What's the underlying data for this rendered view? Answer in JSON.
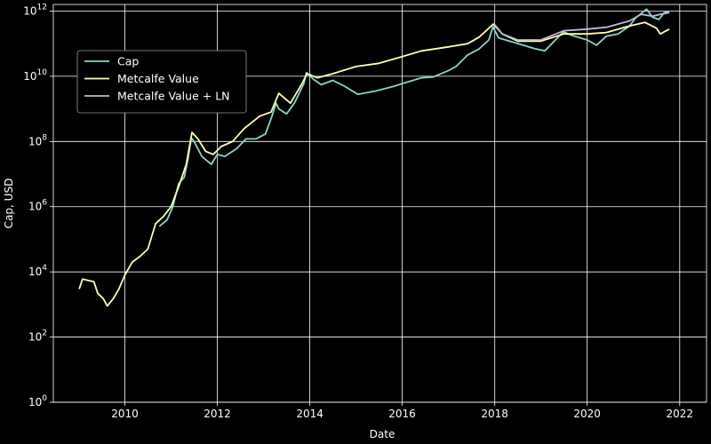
{
  "chart_data": {
    "type": "line",
    "title": "",
    "xlabel": "Date",
    "ylabel": "Cap, USD",
    "x_scale": "date",
    "y_scale": "log",
    "xlim": [
      "2008-06-15",
      "2022-08-01"
    ],
    "ylim": [
      1,
      1600000000000.0
    ],
    "x_ticks": [
      "2010",
      "2012",
      "2014",
      "2016",
      "2018",
      "2020",
      "2022"
    ],
    "x_tick_values": [
      "2010-01-01",
      "2012-01-01",
      "2014-01-01",
      "2016-01-01",
      "2018-01-01",
      "2020-01-01",
      "2022-01-01"
    ],
    "y_ticks": [
      {
        "value": 1,
        "base": "10",
        "exp": "0"
      },
      {
        "value": 100,
        "base": "10",
        "exp": "2"
      },
      {
        "value": 10000,
        "base": "10",
        "exp": "4"
      },
      {
        "value": 1000000,
        "base": "10",
        "exp": "6"
      },
      {
        "value": 100000000,
        "base": "10",
        "exp": "8"
      },
      {
        "value": 10000000000,
        "base": "10",
        "exp": "10"
      },
      {
        "value": 1000000000000,
        "base": "10",
        "exp": "12"
      }
    ],
    "grid": true,
    "legend_position": "upper-left",
    "background": "#000000",
    "grid_color": "#ffffff",
    "series": [
      {
        "name": "Cap",
        "color": "#8dd3c7",
        "points": [
          [
            "2010-10-01",
            250000.0
          ],
          [
            "2010-12-01",
            400000.0
          ],
          [
            "2011-01-15",
            1000000.0
          ],
          [
            "2011-03-01",
            5000000.0
          ],
          [
            "2011-04-15",
            8000000.0
          ],
          [
            "2011-05-15",
            30000000.0
          ],
          [
            "2011-06-10",
            130000000.0
          ],
          [
            "2011-07-01",
            100000000.0
          ],
          [
            "2011-08-01",
            60000000.0
          ],
          [
            "2011-09-01",
            35000000.0
          ],
          [
            "2011-10-15",
            25000000.0
          ],
          [
            "2011-11-15",
            20000000.0
          ],
          [
            "2012-01-01",
            40000000.0
          ],
          [
            "2012-03-01",
            35000000.0
          ],
          [
            "2012-06-01",
            60000000.0
          ],
          [
            "2012-08-15",
            120000000.0
          ],
          [
            "2012-11-01",
            120000000.0
          ],
          [
            "2013-01-15",
            170000000.0
          ],
          [
            "2013-03-01",
            500000000.0
          ],
          [
            "2013-04-10",
            1500000000.0
          ],
          [
            "2013-05-01",
            1000000000.0
          ],
          [
            "2013-07-01",
            700000000.0
          ],
          [
            "2013-09-01",
            1500000000.0
          ],
          [
            "2013-11-15",
            6000000000.0
          ],
          [
            "2013-12-05",
            13000000000.0
          ],
          [
            "2014-02-01",
            8000000000.0
          ],
          [
            "2014-04-01",
            5500000000.0
          ],
          [
            "2014-07-01",
            7500000000.0
          ],
          [
            "2014-10-01",
            5000000000.0
          ],
          [
            "2015-01-15",
            2800000000.0
          ],
          [
            "2015-06-01",
            3500000000.0
          ],
          [
            "2015-11-01",
            5000000000.0
          ],
          [
            "2016-01-01",
            6000000000.0
          ],
          [
            "2016-06-01",
            9000000000.0
          ],
          [
            "2016-09-01",
            9500000000.0
          ],
          [
            "2017-01-01",
            15000000000.0
          ],
          [
            "2017-03-01",
            20000000000.0
          ],
          [
            "2017-06-01",
            45000000000.0
          ],
          [
            "2017-09-01",
            70000000000.0
          ],
          [
            "2017-11-15",
            130000000000.0
          ],
          [
            "2017-12-17",
            330000000000.0
          ],
          [
            "2018-02-01",
            150000000000.0
          ],
          [
            "2018-06-01",
            110000000000.0
          ],
          [
            "2018-11-15",
            70000000000.0
          ],
          [
            "2019-02-01",
            60000000000.0
          ],
          [
            "2019-06-26",
            230000000000.0
          ],
          [
            "2019-09-01",
            180000000000.0
          ],
          [
            "2020-01-01",
            130000000000.0
          ],
          [
            "2020-03-15",
            90000000000.0
          ],
          [
            "2020-06-01",
            170000000000.0
          ],
          [
            "2020-09-01",
            200000000000.0
          ],
          [
            "2020-12-01",
            350000000000.0
          ],
          [
            "2021-01-15",
            600000000000.0
          ],
          [
            "2021-04-14",
            1150000000000.0
          ],
          [
            "2021-06-01",
            650000000000.0
          ],
          [
            "2021-07-20",
            550000000000.0
          ],
          [
            "2021-09-01",
            900000000000.0
          ],
          [
            "2021-10-10",
            1000000000000.0
          ]
        ]
      },
      {
        "name": "Metcalfe Value",
        "color": "#ffffb3",
        "points": [
          [
            "2009-01-05",
            3000.0
          ],
          [
            "2009-02-01",
            6000.0
          ],
          [
            "2009-03-15",
            5500.0
          ],
          [
            "2009-05-01",
            5000.0
          ],
          [
            "2009-06-01",
            2200.0
          ],
          [
            "2009-07-15",
            1500.0
          ],
          [
            "2009-08-15",
            900.0
          ],
          [
            "2009-10-01",
            1500.0
          ],
          [
            "2009-11-15",
            3000.0
          ],
          [
            "2010-01-01",
            8000.0
          ],
          [
            "2010-03-01",
            20000.0
          ],
          [
            "2010-05-01",
            30000.0
          ],
          [
            "2010-07-01",
            50000.0
          ],
          [
            "2010-09-01",
            300000.0
          ],
          [
            "2010-11-01",
            500000.0
          ],
          [
            "2011-01-01",
            1000000.0
          ],
          [
            "2011-03-01",
            4000000.0
          ],
          [
            "2011-05-01",
            20000000.0
          ],
          [
            "2011-06-15",
            190000000.0
          ],
          [
            "2011-08-01",
            120000000.0
          ],
          [
            "2011-10-01",
            50000000.0
          ],
          [
            "2011-12-01",
            40000000.0
          ],
          [
            "2012-02-01",
            70000000.0
          ],
          [
            "2012-05-01",
            100000000.0
          ],
          [
            "2012-08-01",
            250000000.0
          ],
          [
            "2012-12-01",
            600000000.0
          ],
          [
            "2013-03-01",
            800000000.0
          ],
          [
            "2013-05-01",
            3000000000.0
          ],
          [
            "2013-08-01",
            1500000000.0
          ],
          [
            "2013-11-01",
            6000000000.0
          ],
          [
            "2013-12-10",
            12000000000.0
          ],
          [
            "2014-03-01",
            9000000000.0
          ],
          [
            "2014-07-01",
            12000000000.0
          ],
          [
            "2015-01-01",
            20000000000.0
          ],
          [
            "2015-07-01",
            25000000000.0
          ],
          [
            "2016-01-01",
            40000000000.0
          ],
          [
            "2016-06-01",
            60000000000.0
          ],
          [
            "2017-01-01",
            80000000000.0
          ],
          [
            "2017-06-01",
            100000000000.0
          ],
          [
            "2017-09-01",
            160000000000.0
          ],
          [
            "2017-12-20",
            400000000000.0
          ],
          [
            "2018-03-01",
            200000000000.0
          ],
          [
            "2018-07-01",
            120000000000.0
          ],
          [
            "2019-01-01",
            120000000000.0
          ],
          [
            "2019-07-01",
            200000000000.0
          ],
          [
            "2020-01-01",
            200000000000.0
          ],
          [
            "2020-06-01",
            220000000000.0
          ],
          [
            "2020-12-01",
            350000000000.0
          ],
          [
            "2021-04-01",
            450000000000.0
          ],
          [
            "2021-07-01",
            300000000000.0
          ],
          [
            "2021-08-01",
            200000000000.0
          ],
          [
            "2021-10-10",
            280000000000.0
          ]
        ]
      },
      {
        "name": "Metcalfe Value + LN",
        "color": "#bebada",
        "points": [
          [
            "2018-01-01",
            380000000000.0
          ],
          [
            "2018-03-01",
            200000000000.0
          ],
          [
            "2018-07-01",
            130000000000.0
          ],
          [
            "2019-01-01",
            130000000000.0
          ],
          [
            "2019-07-01",
            250000000000.0
          ],
          [
            "2020-01-01",
            280000000000.0
          ],
          [
            "2020-06-01",
            320000000000.0
          ],
          [
            "2020-12-01",
            500000000000.0
          ],
          [
            "2021-03-01",
            800000000000.0
          ],
          [
            "2021-06-01",
            700000000000.0
          ],
          [
            "2021-08-01",
            800000000000.0
          ],
          [
            "2021-10-10",
            900000000000.0
          ]
        ]
      }
    ]
  }
}
